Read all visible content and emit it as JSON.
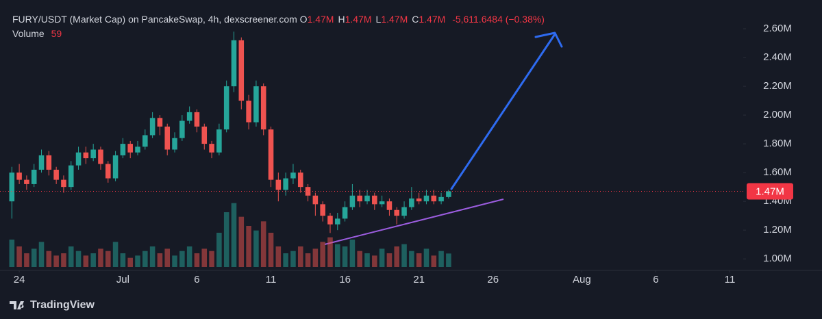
{
  "chart_data": {
    "type": "candlestick",
    "title": "FURY/USDT (Market Cap) on PancakeSwap, 4h, dexscreener.com",
    "ohlc_legend": [
      {
        "label": "O",
        "value": "1.47M"
      },
      {
        "label": "H",
        "value": "1.47M"
      },
      {
        "label": "L",
        "value": "1.47M"
      },
      {
        "label": "C",
        "value": "1.47M"
      }
    ],
    "change": "-5,611.6484 (−0.38%)",
    "volume_label": "Volume",
    "volume_value": 59,
    "up_color": "#26a69a",
    "down_color": "#ef5350",
    "last_price": {
      "value": 1.47,
      "label": "1.47M"
    },
    "x": [
      -0.5,
      0,
      0.5,
      1,
      1.5,
      2,
      2.5,
      3,
      3.5,
      4,
      4.5,
      5,
      5.5,
      6,
      6.5,
      7,
      7.5,
      8,
      8.5,
      9,
      9.5,
      10,
      10.5,
      11,
      11.5,
      12,
      12.5,
      13,
      13.5,
      14,
      14.5,
      15,
      15.5,
      16,
      16.5,
      17,
      17.5,
      18,
      18.5,
      19,
      19.5,
      20,
      20.5,
      21,
      21.5,
      22,
      22.5,
      23,
      23.5,
      24,
      24.5,
      25,
      25.5,
      26,
      26.5,
      27,
      27.5,
      28,
      28.5,
      29
    ],
    "open": [
      1.4,
      1.6,
      1.55,
      1.52,
      1.62,
      1.72,
      1.62,
      1.55,
      1.5,
      1.65,
      1.74,
      1.7,
      1.76,
      1.66,
      1.56,
      1.72,
      1.8,
      1.74,
      1.78,
      1.86,
      1.98,
      1.92,
      1.76,
      1.84,
      1.96,
      2.02,
      1.92,
      1.8,
      1.74,
      1.9,
      2.2,
      2.52,
      2.1,
      1.95,
      2.2,
      1.9,
      1.55,
      1.48,
      1.56,
      1.6,
      1.5,
      1.44,
      1.38,
      1.3,
      1.24,
      1.28,
      1.36,
      1.44,
      1.4,
      1.44,
      1.38,
      1.4,
      1.34,
      1.3,
      1.36,
      1.42,
      1.4,
      1.44,
      1.4,
      1.43
    ],
    "high": [
      1.64,
      1.66,
      1.58,
      1.66,
      1.76,
      1.75,
      1.64,
      1.58,
      1.68,
      1.78,
      1.78,
      1.8,
      1.78,
      1.68,
      1.75,
      1.84,
      1.82,
      1.82,
      1.9,
      2.02,
      2.0,
      1.94,
      1.88,
      2.0,
      2.06,
      2.04,
      1.94,
      1.82,
      1.94,
      2.24,
      2.58,
      2.54,
      2.14,
      2.24,
      2.22,
      1.92,
      1.6,
      1.6,
      1.66,
      1.62,
      1.52,
      1.46,
      1.4,
      1.32,
      1.32,
      1.4,
      1.52,
      1.48,
      1.48,
      1.46,
      1.44,
      1.42,
      1.36,
      1.4,
      1.5,
      1.46,
      1.48,
      1.48,
      1.46,
      1.48
    ],
    "low": [
      1.28,
      1.52,
      1.48,
      1.5,
      1.6,
      1.58,
      1.52,
      1.46,
      1.48,
      1.62,
      1.66,
      1.68,
      1.62,
      1.53,
      1.54,
      1.7,
      1.7,
      1.72,
      1.76,
      1.84,
      1.86,
      1.72,
      1.74,
      1.82,
      1.94,
      1.88,
      1.76,
      1.7,
      1.72,
      1.88,
      2.16,
      2.04,
      1.9,
      1.92,
      1.86,
      1.5,
      1.4,
      1.44,
      1.52,
      1.46,
      1.4,
      1.3,
      1.26,
      1.18,
      1.2,
      1.26,
      1.34,
      1.36,
      1.38,
      1.34,
      1.36,
      1.3,
      1.24,
      1.28,
      1.34,
      1.38,
      1.38,
      1.38,
      1.38,
      1.42
    ],
    "close": [
      1.6,
      1.55,
      1.52,
      1.62,
      1.72,
      1.62,
      1.55,
      1.5,
      1.65,
      1.74,
      1.7,
      1.76,
      1.66,
      1.56,
      1.72,
      1.8,
      1.74,
      1.78,
      1.86,
      1.98,
      1.92,
      1.76,
      1.84,
      1.96,
      2.02,
      1.92,
      1.8,
      1.74,
      1.9,
      2.2,
      2.52,
      2.1,
      1.95,
      2.2,
      1.9,
      1.55,
      1.48,
      1.56,
      1.6,
      1.5,
      1.44,
      1.38,
      1.3,
      1.24,
      1.28,
      1.36,
      1.44,
      1.4,
      1.44,
      1.38,
      1.4,
      1.34,
      1.3,
      1.36,
      1.42,
      1.4,
      1.44,
      1.4,
      1.43,
      1.47
    ],
    "volume": [
      120,
      90,
      60,
      80,
      110,
      70,
      50,
      60,
      90,
      70,
      50,
      60,
      80,
      70,
      110,
      60,
      40,
      50,
      70,
      90,
      60,
      80,
      50,
      70,
      90,
      60,
      80,
      70,
      150,
      240,
      280,
      220,
      180,
      160,
      200,
      150,
      90,
      60,
      70,
      90,
      60,
      80,
      110,
      130,
      100,
      90,
      120,
      70,
      60,
      50,
      80,
      60,
      90,
      100,
      70,
      60,
      80,
      50,
      70,
      59
    ],
    "vlim": [
      0,
      300
    ],
    "xlim": [
      -1.3,
      48.9
    ],
    "xticks": [
      {
        "value": 0,
        "label": "24"
      },
      {
        "value": 7,
        "label": "Jul"
      },
      {
        "value": 12,
        "label": "6"
      },
      {
        "value": 17,
        "label": "11"
      },
      {
        "value": 22,
        "label": "16"
      },
      {
        "value": 27,
        "label": "21"
      },
      {
        "value": 32,
        "label": "26"
      },
      {
        "value": 38,
        "label": "Aug"
      },
      {
        "value": 43,
        "label": "6"
      },
      {
        "value": 48,
        "label": "11"
      }
    ],
    "ylim": [
      0.92,
      2.8
    ],
    "yticks": [
      {
        "value": 1.0,
        "label": "1.00M"
      },
      {
        "value": 1.2,
        "label": "1.20M"
      },
      {
        "value": 1.4,
        "label": "1.40M"
      },
      {
        "value": 1.6,
        "label": "1.60M"
      },
      {
        "value": 1.8,
        "label": "1.80M"
      },
      {
        "value": 2.0,
        "label": "2.00M"
      },
      {
        "value": 2.2,
        "label": "2.20M"
      },
      {
        "value": 2.4,
        "label": "2.40M"
      },
      {
        "value": 2.6,
        "label": "2.60M"
      }
    ],
    "grid": false,
    "footer": "TradingView"
  }
}
